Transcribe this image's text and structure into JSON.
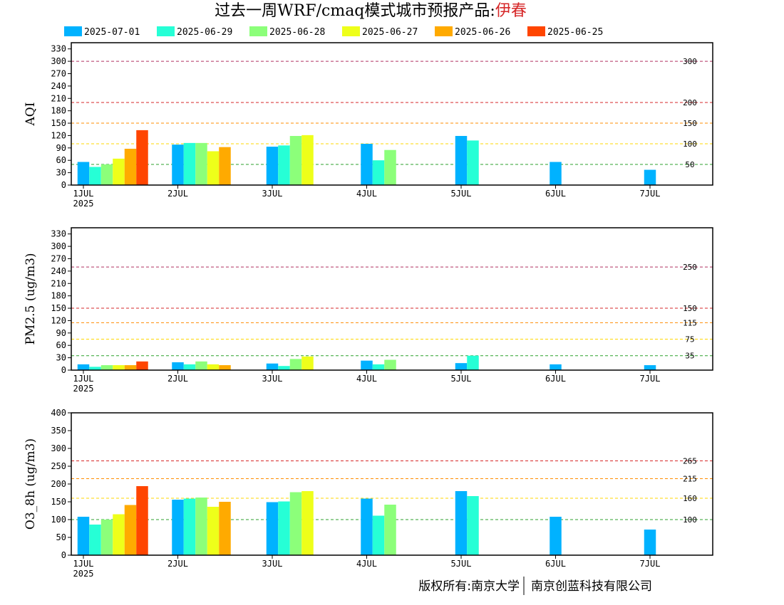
{
  "title": {
    "main": "过去一周WRF/cmaq模式城市预报产品:",
    "city": "伊春"
  },
  "footer": {
    "left": "版权所有:南京大学",
    "right": "南京创蓝科技有限公司"
  },
  "colors": {
    "2025-07-01": "#00b2ff",
    "2025-06-29": "#26ffd6",
    "2025-06-28": "#8cff7a",
    "2025-06-27": "#eeff1a",
    "2025-06-26": "#ffaa00",
    "2025-06-25": "#ff4500"
  },
  "chart_data": [
    {
      "type": "bar",
      "ylabel": "AQI",
      "ylim": [
        0,
        345
      ],
      "yticks": [
        0,
        30,
        60,
        90,
        120,
        150,
        180,
        210,
        240,
        270,
        300,
        330
      ],
      "xticks": [
        "1JUL",
        "2JUL",
        "3JUL",
        "4JUL",
        "5JUL",
        "6JUL",
        "7JUL"
      ],
      "xsub": "2025",
      "grid": false,
      "legend_position": "top",
      "series_names": [
        "2025-07-01",
        "2025-06-29",
        "2025-06-28",
        "2025-06-27",
        "2025-06-26",
        "2025-06-25"
      ],
      "thresholds": [
        {
          "value": 300,
          "label": "300",
          "color": "#b03060"
        },
        {
          "value": 200,
          "label": "200",
          "color": "#d62728"
        },
        {
          "value": 150,
          "label": "150",
          "color": "#ff8c00"
        },
        {
          "value": 100,
          "label": "100",
          "color": "#ffd700"
        },
        {
          "value": 50,
          "label": "50",
          "color": "#2ca02c"
        }
      ],
      "bars": [
        {
          "day": 0,
          "series": "2025-07-01",
          "value": 56
        },
        {
          "day": 0,
          "series": "2025-06-29",
          "value": 44
        },
        {
          "day": 0,
          "series": "2025-06-28",
          "value": 50
        },
        {
          "day": 0,
          "series": "2025-06-27",
          "value": 64
        },
        {
          "day": 0,
          "series": "2025-06-26",
          "value": 88
        },
        {
          "day": 0,
          "series": "2025-06-25",
          "value": 133
        },
        {
          "day": 1,
          "series": "2025-07-01",
          "value": 98
        },
        {
          "day": 1,
          "series": "2025-06-29",
          "value": 102
        },
        {
          "day": 1,
          "series": "2025-06-28",
          "value": 102
        },
        {
          "day": 1,
          "series": "2025-06-27",
          "value": 82
        },
        {
          "day": 1,
          "series": "2025-06-26",
          "value": 92
        },
        {
          "day": 2,
          "series": "2025-07-01",
          "value": 93
        },
        {
          "day": 2,
          "series": "2025-06-29",
          "value": 96
        },
        {
          "day": 2,
          "series": "2025-06-28",
          "value": 119
        },
        {
          "day": 2,
          "series": "2025-06-27",
          "value": 121
        },
        {
          "day": 3,
          "series": "2025-07-01",
          "value": 100
        },
        {
          "day": 3,
          "series": "2025-06-29",
          "value": 60
        },
        {
          "day": 3,
          "series": "2025-06-28",
          "value": 85
        },
        {
          "day": 4,
          "series": "2025-07-01",
          "value": 119
        },
        {
          "day": 4,
          "series": "2025-06-29",
          "value": 108
        },
        {
          "day": 5,
          "series": "2025-07-01",
          "value": 56
        },
        {
          "day": 6,
          "series": "2025-07-01",
          "value": 37
        }
      ]
    },
    {
      "type": "bar",
      "ylabel": "PM2.5 (ug/m3)",
      "ylim": [
        0,
        345
      ],
      "yticks": [
        0,
        30,
        60,
        90,
        120,
        150,
        180,
        210,
        240,
        270,
        300,
        330
      ],
      "xticks": [
        "1JUL",
        "2JUL",
        "3JUL",
        "4JUL",
        "5JUL",
        "6JUL",
        "7JUL"
      ],
      "xsub": "2025",
      "grid": false,
      "series_names": [
        "2025-07-01",
        "2025-06-29",
        "2025-06-28",
        "2025-06-27",
        "2025-06-26",
        "2025-06-25"
      ],
      "thresholds": [
        {
          "value": 250,
          "label": "250",
          "color": "#b03060"
        },
        {
          "value": 150,
          "label": "150",
          "color": "#d62728"
        },
        {
          "value": 115,
          "label": "115",
          "color": "#ff8c00"
        },
        {
          "value": 75,
          "label": "75",
          "color": "#ffd700"
        },
        {
          "value": 35,
          "label": "35",
          "color": "#2ca02c"
        }
      ],
      "bars": [
        {
          "day": 0,
          "series": "2025-07-01",
          "value": 14
        },
        {
          "day": 0,
          "series": "2025-06-29",
          "value": 8
        },
        {
          "day": 0,
          "series": "2025-06-28",
          "value": 12
        },
        {
          "day": 0,
          "series": "2025-06-27",
          "value": 12
        },
        {
          "day": 0,
          "series": "2025-06-26",
          "value": 12
        },
        {
          "day": 0,
          "series": "2025-06-25",
          "value": 21
        },
        {
          "day": 1,
          "series": "2025-07-01",
          "value": 19
        },
        {
          "day": 1,
          "series": "2025-06-29",
          "value": 14
        },
        {
          "day": 1,
          "series": "2025-06-28",
          "value": 21
        },
        {
          "day": 1,
          "series": "2025-06-27",
          "value": 14
        },
        {
          "day": 1,
          "series": "2025-06-26",
          "value": 12
        },
        {
          "day": 2,
          "series": "2025-07-01",
          "value": 16
        },
        {
          "day": 2,
          "series": "2025-06-29",
          "value": 10
        },
        {
          "day": 2,
          "series": "2025-06-28",
          "value": 27
        },
        {
          "day": 2,
          "series": "2025-06-27",
          "value": 33
        },
        {
          "day": 3,
          "series": "2025-07-01",
          "value": 23
        },
        {
          "day": 3,
          "series": "2025-06-29",
          "value": 14
        },
        {
          "day": 3,
          "series": "2025-06-28",
          "value": 25
        },
        {
          "day": 4,
          "series": "2025-07-01",
          "value": 17
        },
        {
          "day": 4,
          "series": "2025-06-29",
          "value": 35
        },
        {
          "day": 5,
          "series": "2025-07-01",
          "value": 14
        },
        {
          "day": 6,
          "series": "2025-07-01",
          "value": 12
        }
      ]
    },
    {
      "type": "bar",
      "ylabel": "O3_8h (ug/m3)",
      "ylim": [
        0,
        400
      ],
      "yticks": [
        0,
        50,
        100,
        150,
        200,
        250,
        300,
        350,
        400
      ],
      "xticks": [
        "1JUL",
        "2JUL",
        "3JUL",
        "4JUL",
        "5JUL",
        "6JUL",
        "7JUL"
      ],
      "xsub": "2025",
      "grid": false,
      "series_names": [
        "2025-07-01",
        "2025-06-29",
        "2025-06-28",
        "2025-06-27",
        "2025-06-26",
        "2025-06-25"
      ],
      "thresholds": [
        {
          "value": 265,
          "label": "265",
          "color": "#d62728"
        },
        {
          "value": 215,
          "label": "215",
          "color": "#ff8c00"
        },
        {
          "value": 160,
          "label": "160",
          "color": "#ffd700"
        },
        {
          "value": 100,
          "label": "100",
          "color": "#2ca02c"
        }
      ],
      "bars": [
        {
          "day": 0,
          "series": "2025-07-01",
          "value": 108
        },
        {
          "day": 0,
          "series": "2025-06-29",
          "value": 86
        },
        {
          "day": 0,
          "series": "2025-06-28",
          "value": 100
        },
        {
          "day": 0,
          "series": "2025-06-27",
          "value": 115
        },
        {
          "day": 0,
          "series": "2025-06-26",
          "value": 141
        },
        {
          "day": 0,
          "series": "2025-06-25",
          "value": 194
        },
        {
          "day": 1,
          "series": "2025-07-01",
          "value": 156
        },
        {
          "day": 1,
          "series": "2025-06-29",
          "value": 159
        },
        {
          "day": 1,
          "series": "2025-06-28",
          "value": 162
        },
        {
          "day": 1,
          "series": "2025-06-27",
          "value": 136
        },
        {
          "day": 1,
          "series": "2025-06-26",
          "value": 150
        },
        {
          "day": 2,
          "series": "2025-07-01",
          "value": 149
        },
        {
          "day": 2,
          "series": "2025-06-29",
          "value": 151
        },
        {
          "day": 2,
          "series": "2025-06-28",
          "value": 177
        },
        {
          "day": 2,
          "series": "2025-06-27",
          "value": 180
        },
        {
          "day": 3,
          "series": "2025-07-01",
          "value": 159
        },
        {
          "day": 3,
          "series": "2025-06-29",
          "value": 111
        },
        {
          "day": 3,
          "series": "2025-06-28",
          "value": 142
        },
        {
          "day": 4,
          "series": "2025-07-01",
          "value": 180
        },
        {
          "day": 4,
          "series": "2025-06-29",
          "value": 166
        },
        {
          "day": 5,
          "series": "2025-07-01",
          "value": 108
        },
        {
          "day": 6,
          "series": "2025-07-01",
          "value": 72
        }
      ]
    }
  ]
}
